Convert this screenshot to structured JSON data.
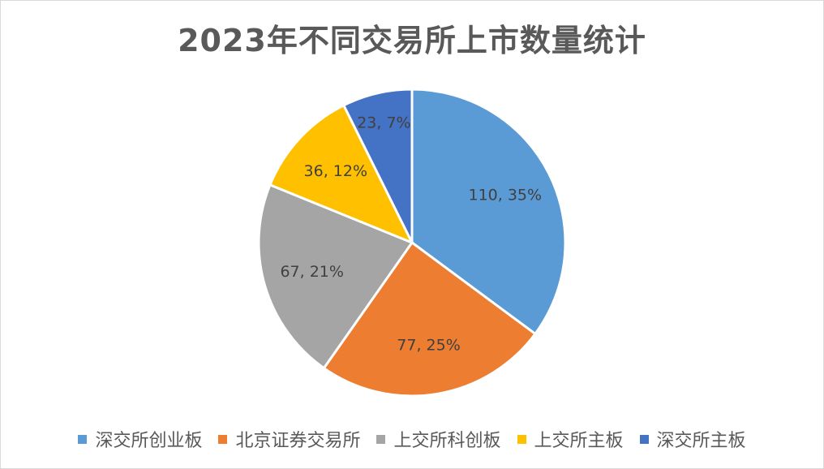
{
  "chart_data": {
    "type": "pie",
    "title": "2023年不同交易所上市数量统计",
    "categories": [
      "深交所创业板",
      "北京证券交易所",
      "上交所科创板",
      "上交所主板",
      "深交所主板"
    ],
    "values": [
      110,
      77,
      67,
      36,
      23
    ],
    "percent_labels": [
      "35%",
      "25%",
      "21%",
      "12%",
      "7%"
    ],
    "data_labels": [
      "110, 35%",
      "77, 25%",
      "67, 21%",
      "36, 12%",
      "23, 7%"
    ],
    "colors": [
      "#5b9bd5",
      "#ed7d31",
      "#a5a5a5",
      "#ffc000",
      "#4472c4"
    ],
    "start_angle_deg": 0,
    "direction": "clockwise",
    "legend": "bottom"
  }
}
